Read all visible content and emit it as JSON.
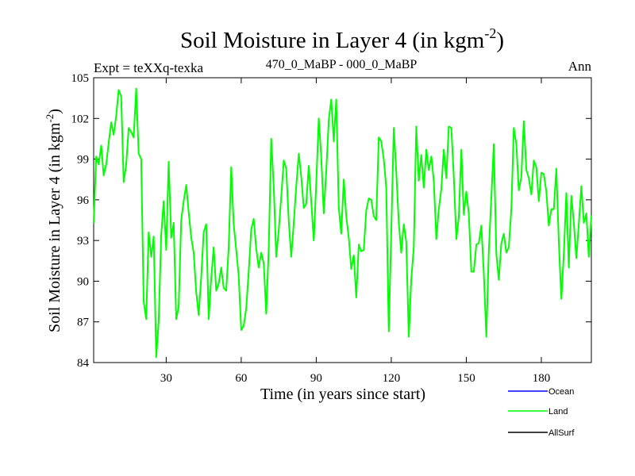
{
  "chart_data": {
    "type": "line",
    "title": "Soil Moisture in Layer 4 (in kgm",
    "title_sup": "-2",
    "title_close": ")",
    "experiment": "Expt = teXXq-texka",
    "subtitle": "470_0_MaBP - 000_0_MaBP",
    "season": "Ann",
    "xlabel": "Time (in years since start)",
    "ylabel": "Soil Moisture in Layer 4 (in kgm",
    "ylabel_sup": "-2",
    "ylabel_close": ")",
    "xlim": [
      1,
      200
    ],
    "ylim": [
      84,
      105
    ],
    "xticks": [
      30,
      60,
      90,
      120,
      150,
      180
    ],
    "xtick_labels": [
      "30",
      "60",
      "90",
      "120",
      "150",
      "180"
    ],
    "yticks": [
      84,
      87,
      90,
      93,
      96,
      99,
      102,
      105
    ],
    "ytick_labels": [
      "84",
      "87",
      "90",
      "93",
      "96",
      "99",
      "102",
      "105"
    ],
    "legend": [
      {
        "label": "Ocean",
        "color": "#0000ff"
      },
      {
        "label": "Land",
        "color": "#00ff00"
      },
      {
        "label": "AllSurf",
        "color": "#000000"
      }
    ],
    "series": [
      {
        "name": "Land",
        "color": "#00ff00",
        "x": [
          1,
          2,
          3,
          4,
          5,
          6,
          7,
          8,
          9,
          10,
          11,
          12,
          13,
          14,
          15,
          16,
          17,
          18,
          19,
          20,
          21,
          22,
          23,
          24,
          25,
          26,
          27,
          28,
          29,
          30,
          31,
          32,
          33,
          34,
          35,
          36,
          37,
          38,
          39,
          40,
          41,
          42,
          43,
          44,
          45,
          46,
          47,
          48,
          49,
          50,
          51,
          52,
          53,
          54,
          55,
          56,
          57,
          58,
          59,
          60,
          61,
          62,
          63,
          64,
          65,
          66,
          67,
          68,
          69,
          70,
          71,
          72,
          73,
          74,
          75,
          76,
          77,
          78,
          79,
          80,
          81,
          82,
          83,
          84,
          85,
          86,
          87,
          88,
          89,
          90,
          91,
          92,
          93,
          94,
          95,
          96,
          97,
          98,
          99,
          100,
          101,
          102,
          103,
          104,
          105,
          106,
          107,
          108,
          109,
          110,
          111,
          112,
          113,
          114,
          115,
          116,
          117,
          118,
          119,
          120,
          121,
          122,
          123,
          124,
          125,
          126,
          127,
          128,
          129,
          130,
          131,
          132,
          133,
          134,
          135,
          136,
          137,
          138,
          139,
          140,
          141,
          142,
          143,
          144,
          145,
          146,
          147,
          148,
          149,
          150,
          151,
          152,
          153,
          154,
          155,
          156,
          157,
          158,
          159,
          160,
          161,
          162,
          163,
          164,
          165,
          166,
          167,
          168,
          169,
          170,
          171,
          172,
          173,
          174,
          175,
          176,
          177,
          178,
          179,
          180,
          181,
          182,
          183,
          184,
          185,
          186,
          187,
          188,
          189,
          190,
          191,
          192,
          193,
          194,
          195,
          196,
          197,
          198,
          199,
          200
        ],
        "values": [
          94.3,
          99.2,
          98.6,
          100.0,
          97.8,
          98.6,
          100.2,
          101.7,
          100.8,
          102.2,
          104.1,
          103.6,
          97.3,
          98.6,
          101.3,
          101.0,
          100.6,
          104.2,
          99.4,
          99.0,
          88.5,
          87.2,
          93.6,
          91.8,
          93.3,
          84.4,
          87.0,
          93.4,
          95.9,
          92.3,
          98.8,
          93.2,
          94.3,
          87.2,
          88.1,
          94.5,
          95.9,
          97.1,
          95.1,
          93.2,
          92.1,
          89.2,
          87.5,
          90.3,
          93.6,
          94.2,
          87.2,
          90.2,
          92.5,
          89.3,
          89.8,
          91.0,
          89.5,
          89.3,
          92.5,
          98.4,
          94.2,
          92.3,
          90.4,
          86.4,
          86.7,
          88.0,
          90.7,
          93.8,
          94.6,
          92.4,
          91.0,
          92.1,
          91.3,
          87.6,
          92.5,
          100.5,
          96.9,
          91.8,
          93.8,
          96.2,
          98.9,
          98.3,
          94.4,
          91.8,
          94.3,
          97.0,
          99.4,
          97.7,
          95.4,
          95.7,
          98.5,
          95.9,
          93.0,
          97.2,
          102.0,
          99.2,
          95.0,
          98.1,
          101.9,
          103.4,
          100.3,
          103.4,
          95.4,
          93.5,
          97.5,
          94.8,
          93.2,
          90.9,
          91.9,
          88.8,
          92.7,
          92.2,
          92.3,
          95.2,
          96.1,
          96.0,
          94.8,
          94.5,
          100.6,
          100.3,
          99.0,
          96.9,
          86.3,
          93.6,
          101.3,
          98.1,
          94.3,
          92.1,
          94.2,
          92.9,
          85.9,
          90.1,
          92.5,
          101.4,
          97.4,
          99.3,
          96.9,
          99.7,
          98.2,
          99.2,
          97.4,
          93.1,
          95.3,
          96.8,
          99.7,
          97.6,
          101.4,
          101.3,
          97.7,
          93.1,
          94.7,
          99.7,
          94.9,
          96.6,
          95.0,
          90.7,
          90.7,
          92.7,
          92.8,
          94.1,
          90.6,
          85.9,
          92.2,
          96.2,
          100.1,
          92.0,
          90.1,
          92.8,
          93.5,
          92.1,
          92.5,
          95.3,
          101.3,
          100.1,
          96.7,
          97.7,
          101.8,
          98.2,
          97.6,
          96.4,
          98.9,
          98.4,
          95.9,
          98.0,
          97.9,
          96.6,
          94.1,
          95.3,
          95.3,
          98.3,
          92.9,
          88.7,
          92.0,
          96.5,
          91.0,
          96.3,
          94.3,
          91.7,
          94.2,
          97.0,
          94.3,
          95.0,
          91.8,
          94.8
        ]
      }
    ]
  }
}
